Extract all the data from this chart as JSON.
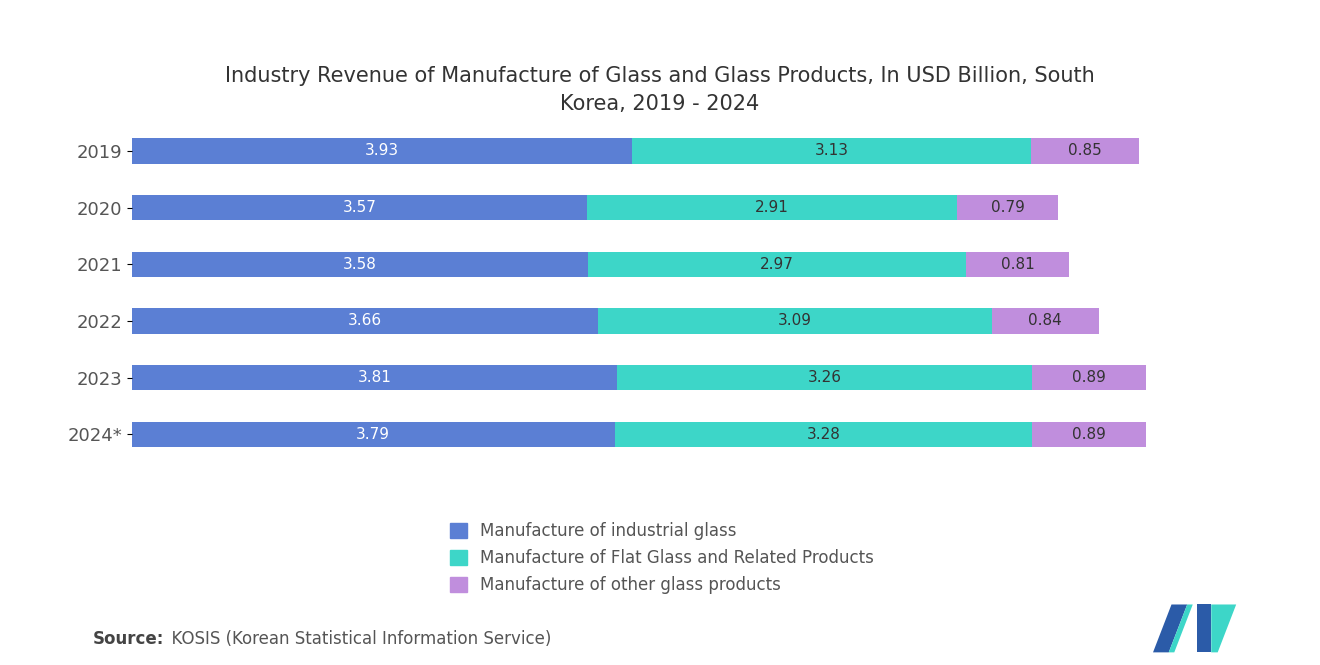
{
  "title": "Industry Revenue of Manufacture of Glass and Glass Products, In USD Billion, South\nKorea, 2019 - 2024",
  "years": [
    "2019",
    "2020",
    "2021",
    "2022",
    "2023",
    "2024*"
  ],
  "industrial_glass": [
    3.93,
    3.57,
    3.58,
    3.66,
    3.81,
    3.79
  ],
  "flat_glass": [
    3.13,
    2.91,
    2.97,
    3.09,
    3.26,
    3.28
  ],
  "other_glass": [
    0.85,
    0.79,
    0.81,
    0.84,
    0.89,
    0.89
  ],
  "color_industrial": "#5B7FD4",
  "color_flat": "#3DD6C8",
  "color_other": "#C08EDD",
  "label_industrial": "Manufacture of industrial glass",
  "label_flat": "Manufacture of Flat Glass and Related Products",
  "label_other": "Manufacture of other glass products",
  "source_bold": "Source:",
  "source_text": "  KOSIS (Korean Statistical Information Service)",
  "background_color": "#FFFFFF",
  "bar_height": 0.45,
  "title_fontsize": 15,
  "bar_label_fontsize": 11,
  "legend_fontsize": 12,
  "source_fontsize": 12,
  "year_fontsize": 13
}
